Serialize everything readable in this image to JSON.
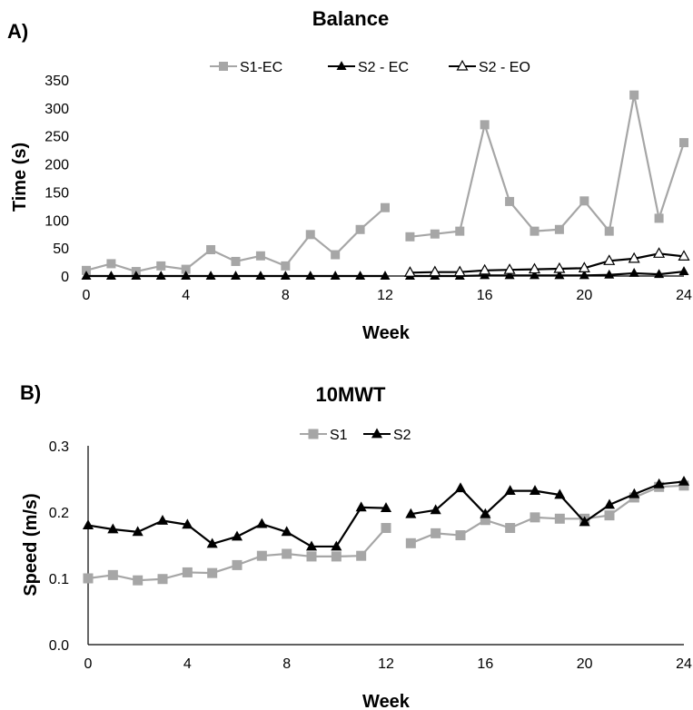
{
  "chart_data": [
    {
      "type": "line",
      "panel_label": "A)",
      "title": "Balance",
      "xlabel": "Week",
      "ylabel": "Time (s)",
      "xlim": [
        0,
        24
      ],
      "ylim": [
        0,
        350
      ],
      "xticks": [
        "0",
        "4",
        "8",
        "12",
        "16",
        "20",
        "24"
      ],
      "yticks": [
        "0",
        "50",
        "100",
        "150",
        "200",
        "250",
        "300",
        "350"
      ],
      "grid": false,
      "legend": "top",
      "series": [
        {
          "name": "S1-EC",
          "color": "#a6a6a6",
          "marker": "square",
          "segments": [
            {
              "x": [
                0,
                1,
                2,
                3,
                4,
                5,
                6,
                7,
                8,
                9,
                10,
                11,
                12
              ],
              "y": [
                10,
                22,
                8,
                18,
                12,
                47,
                26,
                36,
                18,
                74,
                38,
                83,
                122
              ]
            },
            {
              "x": [
                13,
                14,
                15,
                16,
                17,
                18,
                19,
                20,
                21,
                22,
                23,
                24
              ],
              "y": [
                70,
                75,
                80,
                270,
                133,
                80,
                83,
                134,
                80,
                323,
                103,
                238
              ]
            }
          ]
        },
        {
          "name": "S2 - EC",
          "color": "#000000",
          "marker": "triangle-filled",
          "segments": [
            {
              "x": [
                0,
                1,
                2,
                3,
                4,
                5,
                6,
                7,
                8,
                9,
                10,
                11,
                12
              ],
              "y": [
                0,
                0,
                0,
                0,
                0,
                0,
                0,
                0,
                0,
                0,
                0,
                0,
                0
              ]
            },
            {
              "x": [
                13,
                14,
                15,
                16,
                17,
                18,
                19,
                20,
                21,
                22,
                23,
                24
              ],
              "y": [
                0,
                0,
                0,
                1,
                1,
                1,
                1,
                1,
                2,
                5,
                3,
                8
              ]
            }
          ]
        },
        {
          "name": "S2 - EO",
          "color": "#000000",
          "marker": "triangle-open",
          "segments": [
            {
              "x": [
                13,
                14,
                15,
                16,
                17,
                18,
                19,
                20,
                21,
                22,
                23,
                24
              ],
              "y": [
                6,
                7,
                7,
                10,
                11,
                12,
                13,
                14,
                27,
                31,
                40,
                35
              ]
            }
          ]
        }
      ]
    },
    {
      "type": "line",
      "panel_label": "B)",
      "title": "10MWT",
      "xlabel": "Week",
      "ylabel": "Speed (m/s)",
      "xlim": [
        0,
        24
      ],
      "ylim": [
        0,
        0.3
      ],
      "xticks": [
        "0",
        "4",
        "8",
        "12",
        "16",
        "20",
        "24"
      ],
      "yticks": [
        "0.0",
        "0.1",
        "0.2",
        "0.3"
      ],
      "grid": false,
      "legend": "top",
      "series": [
        {
          "name": "S1",
          "color": "#a6a6a6",
          "marker": "square",
          "segments": [
            {
              "x": [
                0,
                1,
                2,
                3,
                4,
                5,
                6,
                7,
                8,
                9,
                10,
                11,
                12
              ],
              "y": [
                0.1,
                0.105,
                0.097,
                0.099,
                0.109,
                0.108,
                0.12,
                0.134,
                0.137,
                0.133,
                0.133,
                0.134,
                0.176
              ]
            },
            {
              "x": [
                13,
                14,
                15,
                16,
                17,
                18,
                19,
                20,
                21,
                22,
                23,
                24
              ],
              "y": [
                0.153,
                0.168,
                0.165,
                0.188,
                0.176,
                0.192,
                0.19,
                0.19,
                0.195,
                0.222,
                0.238,
                0.24
              ]
            }
          ]
        },
        {
          "name": "S2",
          "color": "#000000",
          "marker": "triangle-filled",
          "segments": [
            {
              "x": [
                0,
                1,
                2,
                3,
                4,
                5,
                6,
                7,
                8,
                9,
                10,
                11,
                12
              ],
              "y": [
                0.18,
                0.174,
                0.17,
                0.187,
                0.181,
                0.152,
                0.163,
                0.182,
                0.17,
                0.148,
                0.148,
                0.207,
                0.206
              ]
            },
            {
              "x": [
                13,
                14,
                15,
                16,
                17,
                18,
                19,
                20,
                21,
                22,
                23,
                24
              ],
              "y": [
                0.197,
                0.203,
                0.236,
                0.197,
                0.232,
                0.232,
                0.226,
                0.185,
                0.211,
                0.227,
                0.242,
                0.246
              ]
            }
          ]
        }
      ]
    }
  ]
}
